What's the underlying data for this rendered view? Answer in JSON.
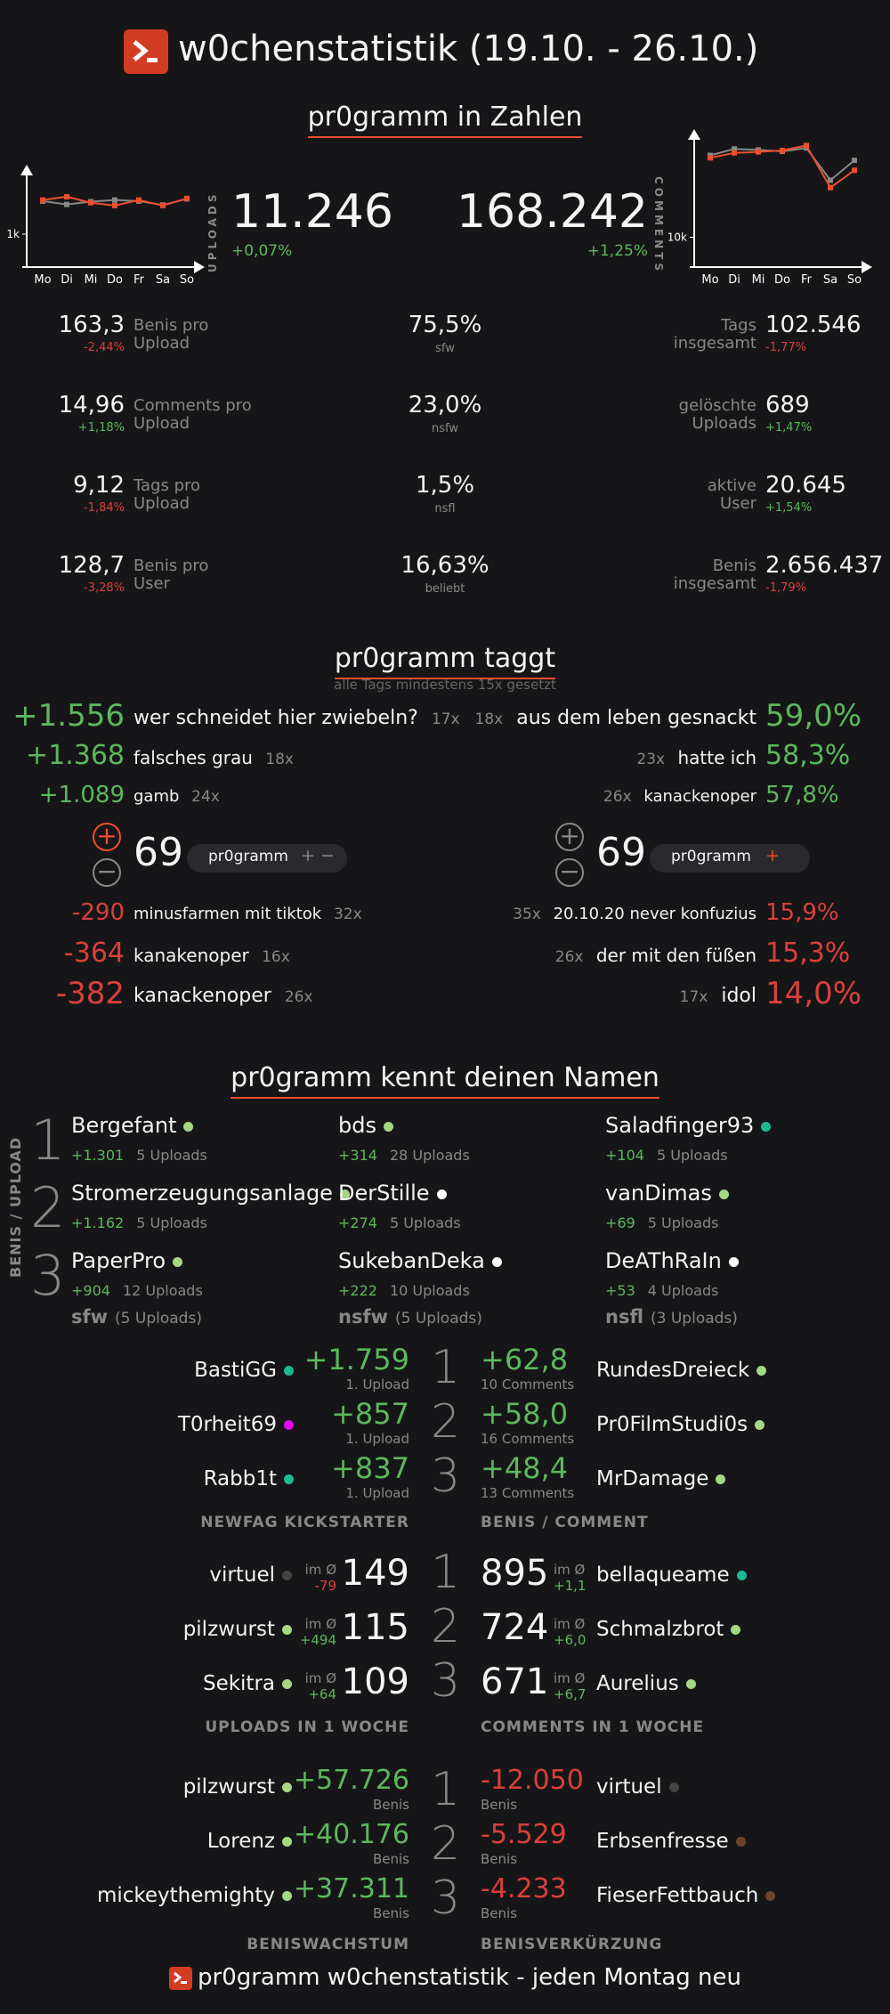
{
  "header": {
    "title": "w0chenstatistik (19.10. - 26.10.)"
  },
  "sections": {
    "zahlen": "pr0gramm in Zahlen",
    "taggt": "pr0gramm taggt",
    "taggt_sub": "alle Tags mindestens 15x gesetzt",
    "namen": "pr0gramm kennt deinen Namen"
  },
  "uploads": {
    "label": "UPLOADS",
    "value": "11.246",
    "change": "+0,07%"
  },
  "comments": {
    "label": "COMMENTS",
    "value": "168.242",
    "change": "+1,25%"
  },
  "charts": {
    "days": [
      "Mo",
      "Di",
      "Mi",
      "Do",
      "Fr",
      "Sa",
      "So"
    ],
    "uploads_tick": "1k",
    "comments_tick": "10k"
  },
  "chart_data": [
    {
      "type": "line",
      "x": [
        "Mo",
        "Di",
        "Mi",
        "Do",
        "Fr",
        "Sa",
        "So"
      ],
      "y_ticks": [
        "1k"
      ],
      "series": [
        {
          "values": [
            1620,
            1680,
            1570,
            1520,
            1620,
            1520,
            1650
          ]
        },
        {
          "values": [
            1600,
            1540,
            1590,
            1620,
            1600,
            1530,
            1640
          ]
        }
      ]
    },
    {
      "type": "line",
      "x": [
        "Mo",
        "Di",
        "Mi",
        "Do",
        "Fr",
        "Sa",
        "So"
      ],
      "y_ticks": [
        "10k"
      ],
      "series": [
        {
          "values": [
            26000,
            27000,
            27200,
            27500,
            28500,
            20000,
            23500
          ]
        },
        {
          "values": [
            26500,
            27800,
            27600,
            27300,
            28000,
            21500,
            25500
          ]
        }
      ]
    }
  ],
  "stats": {
    "left": [
      {
        "value": "163,3",
        "change": "-2,44%",
        "label1": "Benis pro",
        "label2": "Upload"
      },
      {
        "value": "14,96",
        "change": "+1,18%",
        "label1": "Comments pro",
        "label2": "Upload"
      },
      {
        "value": "9,12",
        "change": "-1,84%",
        "label1": "Tags pro",
        "label2": "Upload"
      },
      {
        "value": "128,7",
        "change": "-3,28%",
        "label1": "Benis pro",
        "label2": "User"
      }
    ],
    "mid": [
      {
        "value": "75,5%",
        "label": "sfw"
      },
      {
        "value": "23,0%",
        "label": "nsfw"
      },
      {
        "value": "1,5%",
        "label": "nsfl"
      },
      {
        "value": "16,63%",
        "label": "beliebt"
      }
    ],
    "right": [
      {
        "label1": "Tags",
        "label2": "insgesamt",
        "value": "102.546",
        "change": "-1,77%"
      },
      {
        "label1": "gelöschte",
        "label2": "Uploads",
        "value": "689",
        "change": "+1,47%"
      },
      {
        "label1": "aktive",
        "label2": "User",
        "value": "20.645",
        "change": "+1,54%"
      },
      {
        "label1": "Benis",
        "label2": "insgesamt",
        "value": "2.656.437",
        "change": "-1,79%"
      }
    ]
  },
  "tags": {
    "top_left": [
      {
        "score": "+1.556",
        "name": "wer schneidet hier zwiebeln?",
        "count": "17x"
      },
      {
        "score": "+1.368",
        "name": "falsches grau",
        "count": "18x"
      },
      {
        "score": "+1.089",
        "name": "gamb",
        "count": "24x"
      }
    ],
    "top_right": [
      {
        "count": "18x",
        "name": "aus dem leben gesnackt",
        "pct": "59,0%"
      },
      {
        "count": "23x",
        "name": "hatte ich",
        "pct": "58,3%"
      },
      {
        "count": "26x",
        "name": "kanackenoper",
        "pct": "57,8%"
      }
    ],
    "bottom_left": [
      {
        "score": "-290",
        "name": "minusfarmen mit tiktok",
        "count": "32x"
      },
      {
        "score": "-364",
        "name": "kanakenoper",
        "count": "16x"
      },
      {
        "score": "-382",
        "name": "kanackenoper",
        "count": "26x"
      }
    ],
    "bottom_right": [
      {
        "count": "35x",
        "name": "20.10.20 never konfuzius",
        "pct": "15,9%"
      },
      {
        "count": "26x",
        "name": "der mit den füßen",
        "pct": "15,3%"
      },
      {
        "count": "17x",
        "name": "idol",
        "pct": "14,0%"
      }
    ],
    "vote_left": {
      "number": "69",
      "pill": "pr0gramm",
      "plus": "+",
      "minus": "−"
    },
    "vote_right": {
      "number": "69",
      "pill": "pr0gramm",
      "plus": "+"
    }
  },
  "benis_upload": {
    "side_label": "BENIS / UPLOAD",
    "ranks": [
      "1",
      "2",
      "3"
    ],
    "cols": [
      {
        "foot": "sfw",
        "foot_count": "(5 Uploads)",
        "users": [
          {
            "name": "Bergefant",
            "score": "+1.301",
            "uploads": "5 Uploads",
            "dot": "#a6d785"
          },
          {
            "name": "Stromerzeugungsanlage",
            "score": "+1.162",
            "uploads": "5 Uploads",
            "dot": "#a6d785"
          },
          {
            "name": "PaperPro",
            "score": "+904",
            "uploads": "12 Uploads",
            "dot": "#a6d785"
          }
        ]
      },
      {
        "foot": "nsfw",
        "foot_count": "(5 Uploads)",
        "users": [
          {
            "name": "bds",
            "score": "+314",
            "uploads": "28 Uploads",
            "dot": "#a6d785"
          },
          {
            "name": "DerStille",
            "score": "+274",
            "uploads": "5 Uploads",
            "dot": "#ffffff"
          },
          {
            "name": "SukebanDeka",
            "score": "+222",
            "uploads": "10 Uploads",
            "dot": "#ffffff"
          }
        ]
      },
      {
        "foot": "nsfl",
        "foot_count": "(3 Uploads)",
        "users": [
          {
            "name": "Saladfinger93",
            "score": "+104",
            "uploads": "5 Uploads",
            "dot": "#1cb992"
          },
          {
            "name": "vanDimas",
            "score": "+69",
            "uploads": "5 Uploads",
            "dot": "#a6d785"
          },
          {
            "name": "DeAThRaIn",
            "score": "+53",
            "uploads": "4 Uploads",
            "dot": "#ffffff"
          }
        ]
      }
    ]
  },
  "newfag": {
    "caption": "NEWFAG KICKSTARTER",
    "rows": [
      {
        "name": "BastiGG",
        "dot": "#1cb992",
        "score": "+1.759",
        "sub": "1. Upload"
      },
      {
        "name": "T0rheit69",
        "dot": "#e108e9",
        "score": "+857",
        "sub": "1. Upload"
      },
      {
        "name": "Rabb1t",
        "dot": "#1cb992",
        "score": "+837",
        "sub": "1. Upload"
      }
    ]
  },
  "benis_comment": {
    "caption": "BENIS / COMMENT",
    "rows": [
      {
        "score": "+62,8",
        "sub": "10 Comments",
        "name": "RundesDreieck",
        "dot": "#a6d785"
      },
      {
        "score": "+58,0",
        "sub": "16 Comments",
        "name": "Pr0FilmStudi0s",
        "dot": "#a6d785"
      },
      {
        "score": "+48,4",
        "sub": "13 Comments",
        "name": "MrDamage",
        "dot": "#a6d785"
      }
    ]
  },
  "uploads_week": {
    "caption": "UPLOADS IN 1 WOCHE",
    "avg_label": "im Ø",
    "rows": [
      {
        "name": "virtuel",
        "dot": "#444444",
        "avg": "-79",
        "count": "149"
      },
      {
        "name": "pilzwurst",
        "dot": "#a6d785",
        "avg": "+494",
        "count": "115"
      },
      {
        "name": "Sekitra",
        "dot": "#a6d785",
        "avg": "+64",
        "count": "109"
      }
    ]
  },
  "comments_week": {
    "caption": "COMMENTS IN 1 WOCHE",
    "avg_label": "im Ø",
    "rows": [
      {
        "count": "895",
        "avg": "+1,1",
        "name": "bellaqueame",
        "dot": "#1cb992"
      },
      {
        "count": "724",
        "avg": "+6,0",
        "name": "Schmalzbrot",
        "dot": "#a6d785"
      },
      {
        "count": "671",
        "avg": "+6,7",
        "name": "Aurelius",
        "dot": "#a6d785"
      }
    ]
  },
  "growth": {
    "caption": "BENISWACHSTUM",
    "unit": "Benis",
    "rows": [
      {
        "name": "pilzwurst",
        "dot": "#a6d785",
        "score": "+57.726"
      },
      {
        "name": "Lorenz",
        "dot": "#a6d785",
        "score": "+40.176"
      },
      {
        "name": "mickeythemighty",
        "dot": "#a6d785",
        "score": "+37.311"
      }
    ]
  },
  "shrink": {
    "caption": "BENISVERKÜRZUNG",
    "unit": "Benis",
    "rows": [
      {
        "score": "-12.050",
        "name": "virtuel",
        "dot": "#444444"
      },
      {
        "score": "-5.529",
        "name": "Erbsenfresse",
        "dot": "#6c432b"
      },
      {
        "score": "-4.233",
        "name": "FieserFettbauch",
        "dot": "#6c432b"
      }
    ]
  },
  "footer": {
    "text": "pr0gramm w0chenstatistik - jeden Montag neu"
  }
}
